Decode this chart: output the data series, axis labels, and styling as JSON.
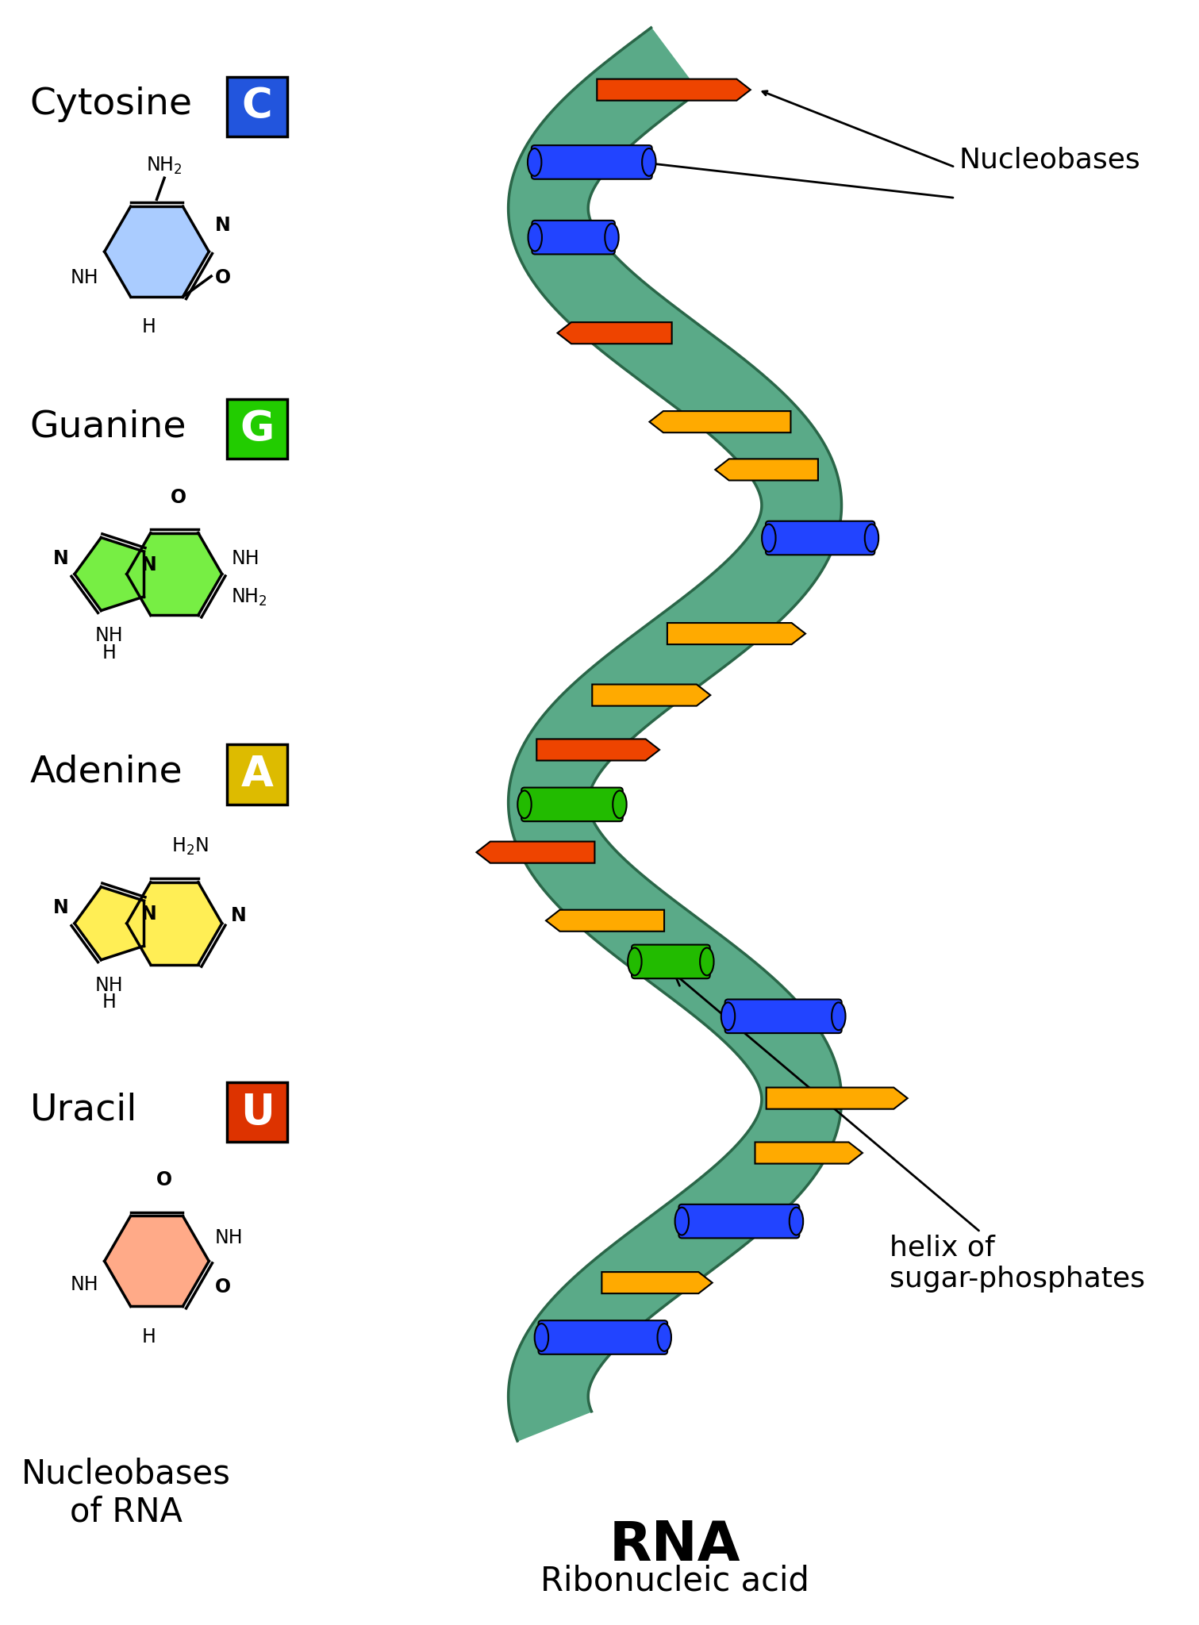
{
  "title": "RNA",
  "subtitle": "Ribonucleic acid",
  "nucleobases_label": "Nucleobases\nof RNA",
  "nucleobases": [
    "Cytosine",
    "Guanine",
    "Adenine",
    "Uracil"
  ],
  "letters": [
    "C",
    "G",
    "A",
    "U"
  ],
  "letter_bg_colors": [
    "#2255dd",
    "#22cc00",
    "#ddbb00",
    "#dd3300"
  ],
  "molecule_colors_fill": [
    "#aaccff",
    "#77ee44",
    "#ffee55",
    "#ffaa88"
  ],
  "helix_fill": "#5aaa88",
  "helix_edge": "#2a6648",
  "nb_colors": [
    "#ee4400",
    "#2244ff",
    "#ffaa00",
    "#22bb00"
  ],
  "bg_color": "#ffffff",
  "text_color": "#000000",
  "label_fontsize": 34,
  "letter_fontsize": 38,
  "mol_fontsize": 17,
  "annot_fontsize": 26,
  "title_fontsize": 50,
  "subtitle_fontsize": 30
}
